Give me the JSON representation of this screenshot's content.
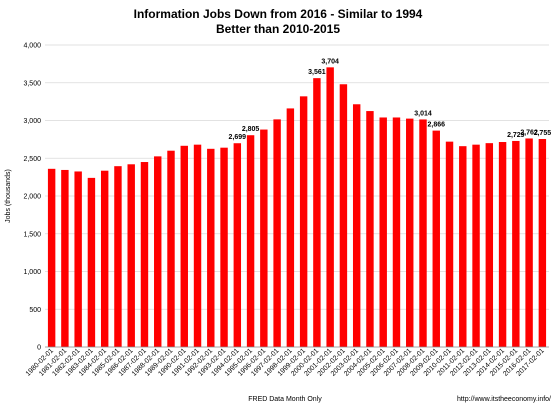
{
  "chart_data": {
    "type": "bar",
    "title": "Information Jobs Down from 2016 - Similar to 1994",
    "subtitle": "Better than 2010-2015",
    "xlabel": "FRED Data Month Only",
    "ylabel": "Jobs (thousands)",
    "source": "http://www.itstheeconomy.info/",
    "ylim": [
      0,
      4000
    ],
    "yticks": [
      0,
      500,
      1000,
      1500,
      2000,
      2500,
      3000,
      3500,
      4000
    ],
    "ytick_labels": [
      "0",
      "500",
      "1,000",
      "1,500",
      "2,000",
      "2,500",
      "3,000",
      "3,500",
      "4,000"
    ],
    "grid": true,
    "bar_color": "#ff0000",
    "categories": [
      "1980-02-01",
      "1981-02-01",
      "1982-02-01",
      "1983-02-01",
      "1984-02-01",
      "1985-02-01",
      "1986-02-01",
      "1987-02-01",
      "1988-02-01",
      "1989-02-01",
      "1990-02-01",
      "1991-02-01",
      "1992-02-01",
      "1993-02-01",
      "1994-02-01",
      "1995-02-01",
      "1996-02-01",
      "1997-02-01",
      "1998-02-01",
      "1999-02-01",
      "2000-02-01",
      "2001-02-01",
      "2002-02-01",
      "2003-02-01",
      "2004-02-01",
      "2005-02-01",
      "2006-02-01",
      "2007-02-01",
      "2008-02-01",
      "2009-02-01",
      "2010-02-01",
      "2011-02-01",
      "2012-02-01",
      "2013-02-01",
      "2014-02-01",
      "2015-02-01",
      "2016-02-01",
      "2017-02-01"
    ],
    "values": [
      2360,
      2345,
      2325,
      2240,
      2335,
      2395,
      2420,
      2450,
      2525,
      2600,
      2665,
      2680,
      2625,
      2640,
      2699,
      2805,
      2880,
      3015,
      3160,
      3320,
      3561,
      3704,
      3480,
      3215,
      3125,
      3040,
      3040,
      3025,
      3014,
      2866,
      2720,
      2660,
      2680,
      2700,
      2715,
      2729,
      2762,
      2755
    ],
    "data_labels": [
      {
        "index": 14,
        "text": "2,699"
      },
      {
        "index": 15,
        "text": "2,805"
      },
      {
        "index": 20,
        "text": "3,561"
      },
      {
        "index": 21,
        "text": "3,704"
      },
      {
        "index": 28,
        "text": "3,014"
      },
      {
        "index": 29,
        "text": "2,866"
      },
      {
        "index": 35,
        "text": "2,729"
      },
      {
        "index": 36,
        "text": "2,762"
      },
      {
        "index": 37,
        "text": "2,755"
      }
    ]
  }
}
